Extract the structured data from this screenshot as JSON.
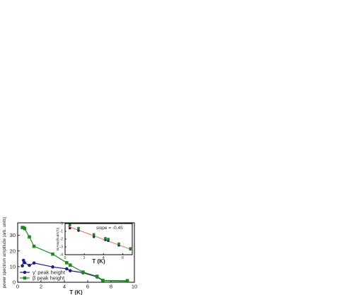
{
  "chart_data": [
    {
      "type": "line",
      "xlabel": "T (K)",
      "ylabel": "power spectrum amplitude (arb. units)",
      "xlim": [
        0,
        10
      ],
      "ylim": [
        0,
        38
      ],
      "x_ticks": [
        "0",
        "2",
        "4",
        "6",
        "8",
        "10"
      ],
      "y_ticks": [
        "0",
        "10",
        "20",
        "30"
      ],
      "grid": false,
      "legend_position": "bottom-left",
      "series": [
        {
          "name": "γ' peak height",
          "color": "#1c1f86",
          "marker": "circle",
          "x": [
            0.4,
            0.5,
            0.6,
            1.0,
            1.4,
            3.0,
            4.2,
            4.5,
            5.6,
            6.8,
            7.3,
            9.4
          ],
          "y": [
            10.5,
            14.0,
            12.5,
            10.8,
            12.3,
            9.8,
            8.6,
            7.4,
            6.1,
            3.4,
            1.0,
            0.7
          ]
        },
        {
          "name": "β peak height",
          "color": "#1e8a1e",
          "marker": "square",
          "x": [
            0.4,
            0.5,
            0.6,
            1.0,
            1.4,
            3.0,
            4.2,
            4.5,
            5.6,
            6.8,
            7.3,
            9.4
          ],
          "y": [
            35.0,
            35.0,
            34.3,
            29.0,
            23.0,
            18.0,
            12.5,
            11.0,
            6.5,
            3.8,
            1.2,
            1.0
          ]
        }
      ]
    },
    {
      "type": "scatter",
      "inset": true,
      "xlabel": "T (K)",
      "ylabel": "ln(Ampl/ludA(T))",
      "xlim": [
        0,
        7
      ],
      "ylim": [
        -4,
        0
      ],
      "x_ticks": [
        "0",
        "2",
        "4",
        "6"
      ],
      "y_ticks": [
        "0",
        "-1",
        "-2",
        "-3",
        "-4"
      ],
      "annotation": "slope = -0.45",
      "fit_line": {
        "x": [
          0.3,
          6.8
        ],
        "y": [
          -0.35,
          -3.3
        ],
        "color": "#e07050"
      },
      "series": [
        {
          "name": "",
          "color": "#1c1f86",
          "marker": "circle",
          "x": [
            0.5,
            1.4,
            3.0,
            4.2,
            4.5,
            5.6,
            6.8
          ],
          "y": [
            -0.6,
            -0.9,
            -1.7,
            -2.1,
            -2.2,
            -2.8,
            -3.3
          ]
        },
        {
          "name": "",
          "color": "#1e8a1e",
          "marker": "square",
          "x": [
            0.5,
            1.4,
            3.0,
            4.2,
            4.5,
            5.6,
            6.8
          ],
          "y": [
            -0.2,
            -0.6,
            -1.4,
            -1.9,
            -2.0,
            -2.6,
            -3.2
          ]
        }
      ]
    }
  ]
}
